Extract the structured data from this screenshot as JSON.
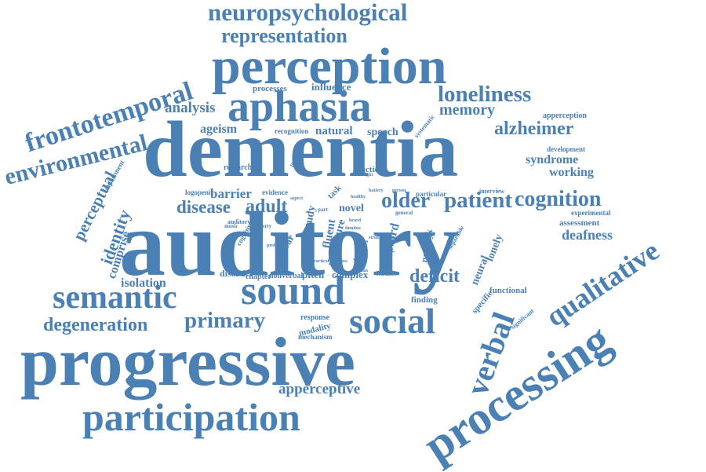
{
  "color": "#4a80b4",
  "words": [
    "neuropsychological",
    "representation",
    "perception",
    "frontotemporal",
    "aphasia",
    "loneliness",
    "memory",
    "environmental",
    "alzheimer",
    "dementia",
    "analysis",
    "processes",
    "influence",
    "ageism",
    "recognition",
    "natural",
    "speech",
    "systematic",
    "apperception",
    "development",
    "syndrome",
    "working",
    "research",
    "function",
    "impairment",
    "perceptual",
    "identity",
    "logopenic",
    "barrier",
    "evidence",
    "disease",
    "adult",
    "older",
    "patient",
    "cognition",
    "interview",
    "experimental",
    "assessment",
    "auditory",
    "deafness",
    "qualitative",
    "comprise",
    "isolation",
    "disorder",
    "chapter",
    "nonverbal",
    "pitch",
    "complex",
    "studies",
    "deficit",
    "finding",
    "semantic",
    "sound",
    "lonely",
    "neural",
    "functional",
    "specific",
    "verbal",
    "degeneration",
    "primary",
    "social",
    "response",
    "modality",
    "mechanism",
    "progressive",
    "significant",
    "processing",
    "apperceptive",
    "participation",
    "cognitive",
    "lobar",
    "study",
    "fluent",
    "pure",
    "novel",
    "level",
    "word",
    "network",
    "severe",
    "separable",
    "task",
    "part",
    "general",
    "healthy",
    "battery",
    "person",
    "particular",
    "aspect",
    "insight",
    "provide",
    "auditory",
    "tinnitus",
    "visual",
    "heard",
    "brain",
    "cortical",
    "hear",
    "voice",
    "stroke",
    "parts",
    "music",
    "property",
    "problem",
    "loss",
    "cross",
    "early",
    "sense"
  ]
}
